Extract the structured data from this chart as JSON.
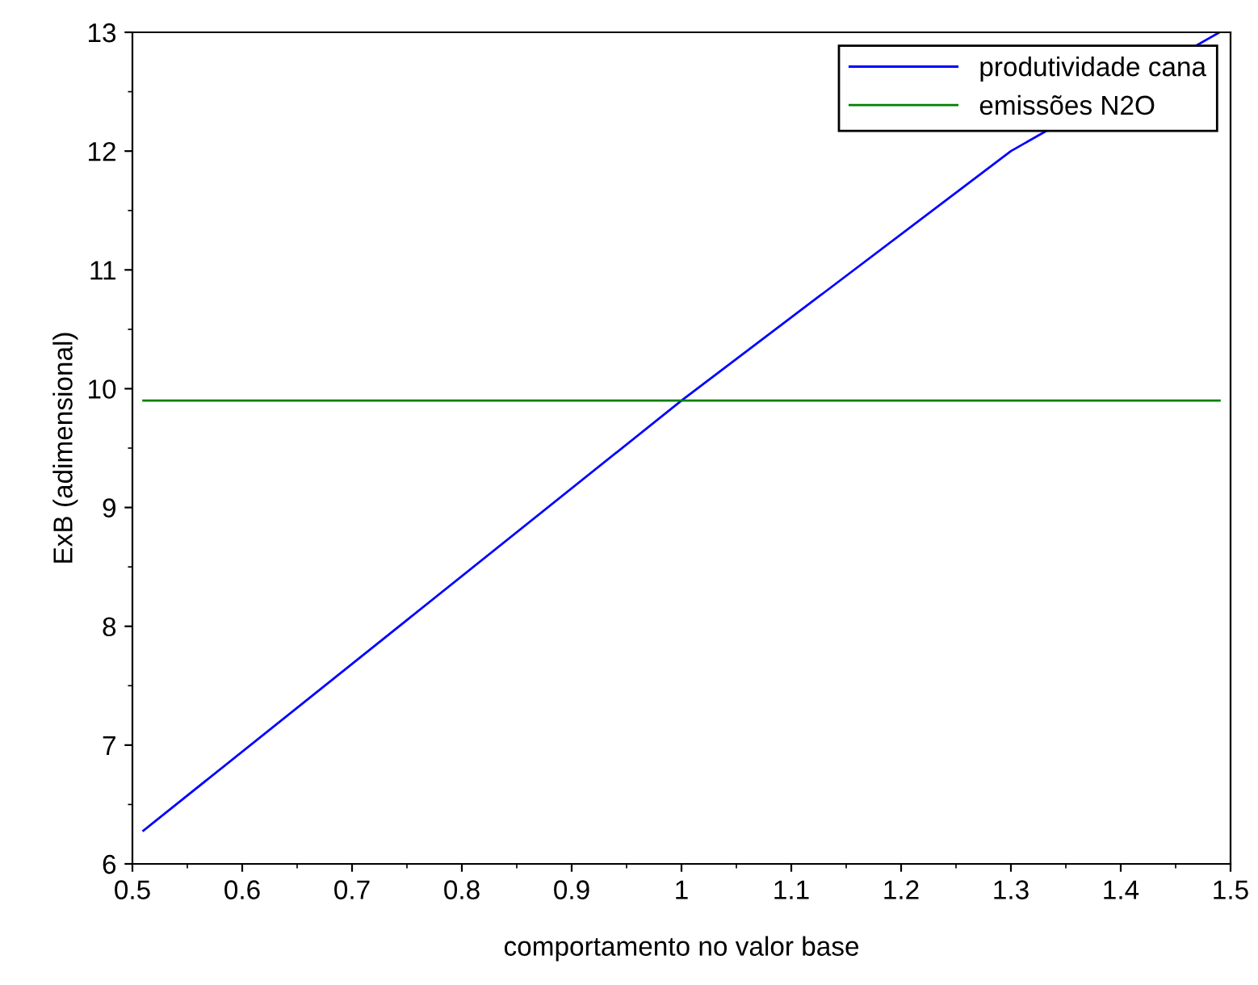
{
  "chart_data": {
    "type": "line",
    "xlabel": "comportamento no valor base",
    "ylabel": "ExB (adimensional)",
    "xlim": [
      0.5,
      1.5
    ],
    "xticks": [
      0.5,
      0.6,
      0.7,
      0.8,
      0.9,
      1,
      1.1,
      1.2,
      1.3,
      1.4,
      1.5
    ],
    "ylim": [
      6,
      13
    ],
    "yticks": [
      6,
      7,
      8,
      9,
      10,
      11,
      12,
      13
    ],
    "series": [
      {
        "name": "produtividade cana",
        "color": "#0000ff",
        "x": [
          0.51,
          1.0,
          1.3,
          1.49
        ],
        "values": [
          6.28,
          9.9,
          12.0,
          13.0
        ]
      },
      {
        "name": "emissões N2O",
        "color": "#008000",
        "x": [
          0.51,
          1.49
        ],
        "values": [
          9.9,
          9.9
        ]
      }
    ],
    "grid": false,
    "legend": "top right",
    "marker": "none",
    "line_style": "solid"
  }
}
